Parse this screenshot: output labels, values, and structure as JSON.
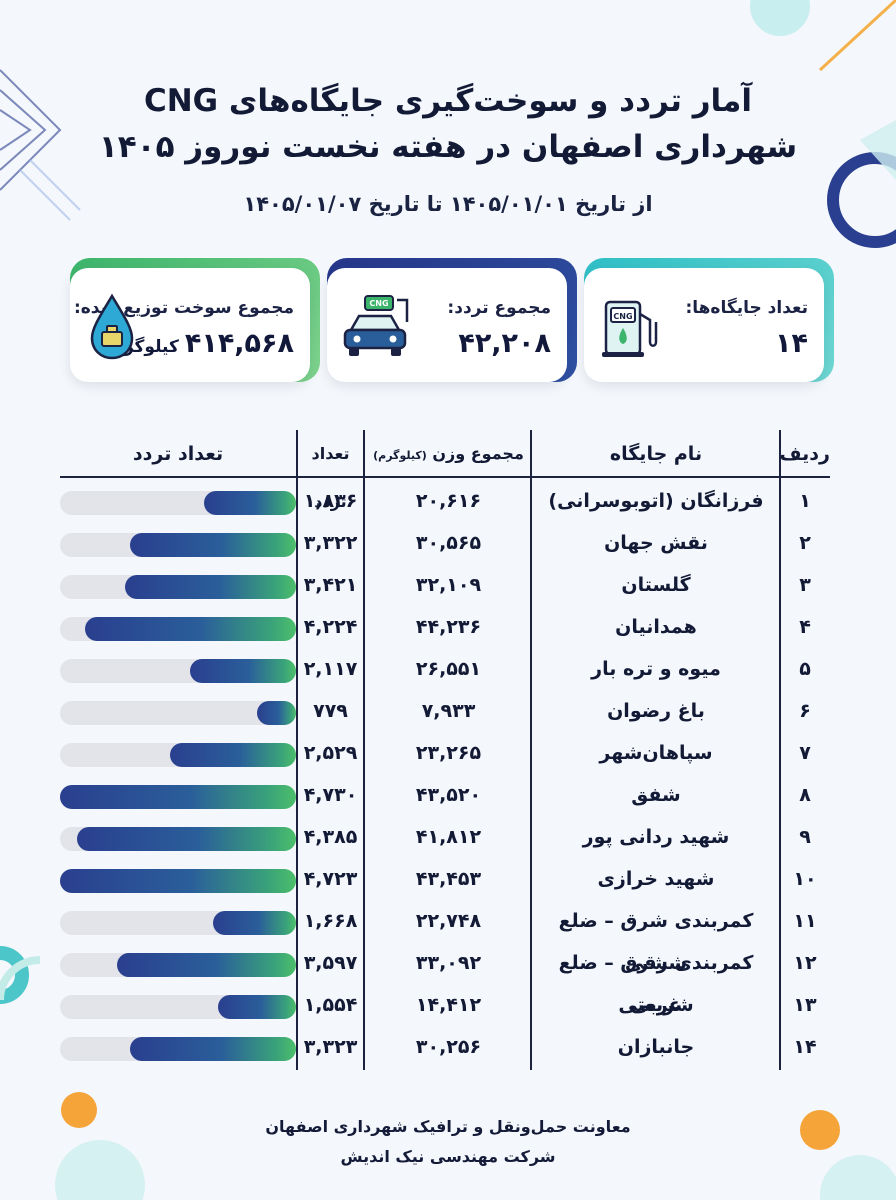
{
  "title_line1": "آمار تردد و سوخت‌گیری جایگاه‌های CNG",
  "title_line2": "شهرداری اصفهان در هفته نخست نوروز ۱۴۰۵",
  "subtitle": "از تاریخ ۱۴۰۵/۰۱/۰۱ تا تاریخ ۱۴۰۵/۰۱/۰۷",
  "cards": {
    "stations": {
      "label": "تعداد جایگاه‌ها:",
      "value": "۱۴",
      "icon": "cng-pump-icon",
      "icon_text": "CNG"
    },
    "traffic": {
      "label": "مجموع تردد:",
      "value": "۴۲,۲۰۸",
      "icon": "car-cng-icon",
      "icon_text": "CNG"
    },
    "fuel": {
      "label": "مجموع سوخت توزیع شده:",
      "value": "۴۱۴,۵۶۸",
      "unit": "کیلوگرم",
      "icon": "fuel-drop-icon"
    }
  },
  "colors": {
    "teal": "#2ebfc6",
    "navy": "#27378a",
    "green": "#3cb46b"
  },
  "table": {
    "headers": {
      "row": "ردیف",
      "name": "نام جایگاه",
      "weight": "مجموع وزن",
      "weight_unit": "(کیلوگرم)",
      "count": "تعداد تردد",
      "bar": "تعداد تردد"
    },
    "bar_max": 4730,
    "rows": [
      {
        "idx": "۱",
        "name": "فرزانگان (اتوبوسرانی)",
        "weight": "۲۰,۶۱۶",
        "count": "۱,۸۳۶",
        "n": 1836
      },
      {
        "idx": "۲",
        "name": "نقش جهان",
        "weight": "۳۰,۵۶۵",
        "count": "۳,۳۲۲",
        "n": 3322
      },
      {
        "idx": "۳",
        "name": "گلستان",
        "weight": "۳۲,۱۰۹",
        "count": "۳,۴۲۱",
        "n": 3421
      },
      {
        "idx": "۴",
        "name": "همدانیان",
        "weight": "۴۴,۲۳۶",
        "count": "۴,۲۲۴",
        "n": 4224
      },
      {
        "idx": "۵",
        "name": "میوه و تره بار",
        "weight": "۲۶,۵۵۱",
        "count": "۲,۱۱۷",
        "n": 2117
      },
      {
        "idx": "۶",
        "name": "باغ رضوان",
        "weight": "۷,۹۳۳",
        "count": "۷۷۹",
        "n": 779
      },
      {
        "idx": "۷",
        "name": "سپاهان‌شهر",
        "weight": "۲۳,۲۶۵",
        "count": "۲,۵۲۹",
        "n": 2529
      },
      {
        "idx": "۸",
        "name": "شفق",
        "weight": "۴۳,۵۲۰",
        "count": "۴,۷۳۰",
        "n": 4730
      },
      {
        "idx": "۹",
        "name": "شهید ردانی پور",
        "weight": "۴۱,۸۱۲",
        "count": "۴,۳۸۵",
        "n": 4385
      },
      {
        "idx": "۱۰",
        "name": "شهید خرازی",
        "weight": "۴۳,۴۵۳",
        "count": "۴,۷۲۳",
        "n": 4723
      },
      {
        "idx": "۱۱",
        "name": "کمربندی شرق – ضلع شرقی",
        "weight": "۲۲,۷۴۸",
        "count": "۱,۶۶۸",
        "n": 1668
      },
      {
        "idx": "۱۲",
        "name": "کمربندی شرق – ضلع غربی",
        "weight": "۳۳,۰۹۲",
        "count": "۳,۵۹۷",
        "n": 3597
      },
      {
        "idx": "۱۳",
        "name": "شریعتی",
        "weight": "۱۴,۴۱۲",
        "count": "۱,۵۵۴",
        "n": 1554
      },
      {
        "idx": "۱۴",
        "name": "جانبازان",
        "weight": "۳۰,۲۵۶",
        "count": "۳,۳۲۳",
        "n": 3323
      }
    ]
  },
  "footer": {
    "line1": "معاونت حمل‌ونقل و ترافیک شهرداری اصفهان",
    "line2": "شرکت مهندسی نیک اندیش"
  }
}
